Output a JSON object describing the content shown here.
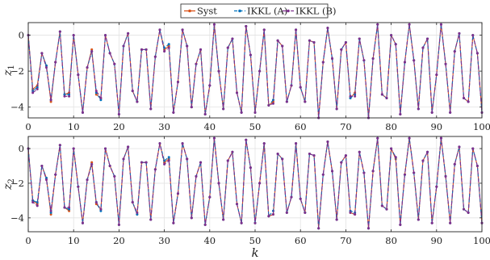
{
  "legend": {
    "entries": [
      {
        "label": "Syst",
        "color": "#D95319",
        "style": "solid",
        "marker": "dot"
      },
      {
        "label": "IKKL (A)",
        "color": "#0072BD",
        "style": "dashed",
        "marker": "dot"
      },
      {
        "label": "IKKL (B)",
        "color": "#7E2F8E",
        "style": "dash-dot",
        "marker": "dot"
      }
    ]
  },
  "chart_data": [
    {
      "type": "line",
      "ylabel": "z1",
      "xlabel": "",
      "xlim": [
        0,
        100
      ],
      "ylim": [
        -4.6,
        0.7
      ],
      "xticks": [
        0,
        10,
        20,
        30,
        40,
        50,
        60,
        70,
        80,
        90,
        100
      ],
      "yticks": [
        0,
        -2,
        -4
      ],
      "grid": true,
      "x": [
        0,
        1,
        2,
        3,
        4,
        5,
        6,
        7,
        8,
        9,
        10,
        11,
        12,
        13,
        14,
        15,
        16,
        17,
        18,
        19,
        20,
        21,
        22,
        23,
        24,
        25,
        26,
        27,
        28,
        29,
        30,
        31,
        32,
        33,
        34,
        35,
        36,
        37,
        38,
        39,
        40,
        41,
        42,
        43,
        44,
        45,
        46,
        47,
        48,
        49,
        50,
        51,
        52,
        53,
        54,
        55,
        56,
        57,
        58,
        59,
        60,
        61,
        62,
        63,
        64,
        65,
        66,
        67,
        68,
        69,
        70,
        71,
        72,
        73,
        74,
        75,
        76,
        77,
        78,
        79,
        80,
        81,
        82,
        83,
        84,
        85,
        86,
        87,
        88,
        89,
        90,
        91,
        92,
        93,
        94,
        95,
        96,
        97,
        98,
        99,
        100
      ],
      "series": [
        {
          "name": "Syst",
          "values": [
            0,
            -3,
            -2.8,
            -1,
            -1.7,
            -3.7,
            -1.5,
            0.2,
            -3.3,
            -3.2,
            0,
            -2.2,
            -4.3,
            -1.8,
            -0.8,
            -3.3,
            -3.5,
            0,
            -1,
            -1.6,
            -4.4,
            -0.6,
            0.1,
            -3.1,
            -3.7,
            -0.8,
            -0.8,
            -4.1,
            -1.2,
            0.3,
            -0.8,
            -0.6,
            -4.3,
            -2.6,
            0.3,
            -0.6,
            -4,
            -1.6,
            -0.8,
            -4.4,
            -2.8,
            0.6,
            -2,
            -4.1,
            -0.7,
            -0.2,
            -3.2,
            -4.3,
            0.5,
            -1.1,
            -4.3,
            -2,
            0.3,
            -3.9,
            -3.7,
            -0.3,
            -0.6,
            -3.7,
            -2.8,
            0.3,
            -2.9,
            -3.7,
            -0.3,
            -0.4,
            -4.6,
            -1.5,
            0.4,
            -1.3,
            -4.1,
            -0.8,
            -0.4,
            -3.5,
            -3.2,
            -0.2,
            -1.4,
            -4.6,
            -1.3,
            0.6,
            -3.3,
            -3.5,
            0,
            -0.5,
            -4.4,
            -1.5,
            0.6,
            -1.4,
            -4.1,
            -0.7,
            -0.2,
            -4.3,
            -2.2,
            0.6,
            -1.6,
            -4.3,
            -0.9,
            0.1,
            -3.5,
            -3.7,
            0,
            -1,
            -4.3
          ]
        },
        {
          "name": "IKKL (A)",
          "values": [
            0,
            -3.1,
            -2.9,
            -1,
            -1.7,
            -3.6,
            -1.5,
            0.2,
            -3.3,
            -3.3,
            0,
            -2.2,
            -4.3,
            -1.8,
            -0.9,
            -3.2,
            -3.6,
            0,
            -1,
            -1.6,
            -4.4,
            -0.6,
            0.1,
            -3.1,
            -3.7,
            -0.8,
            -0.8,
            -4.1,
            -1.2,
            0.3,
            -0.7,
            -0.5,
            -4.3,
            -2.6,
            0.3,
            -0.6,
            -4,
            -1.6,
            -0.8,
            -4.4,
            -2.8,
            0.6,
            -2,
            -4.1,
            -0.7,
            -0.2,
            -3.2,
            -4.3,
            0.5,
            -1.1,
            -4.3,
            -2,
            0.3,
            -3.9,
            -3.6,
            -0.3,
            -0.6,
            -3.7,
            -2.8,
            0.3,
            -2.9,
            -3.7,
            -0.3,
            -0.4,
            -4.6,
            -1.5,
            0.4,
            -1.3,
            -4.1,
            -0.8,
            -0.4,
            -3.5,
            -3.3,
            -0.2,
            -1.4,
            -4.6,
            -1.3,
            0.6,
            -3.3,
            -3.5,
            0,
            -0.5,
            -4.4,
            -1.5,
            0.6,
            -1.4,
            -4.1,
            -0.7,
            -0.2,
            -4.3,
            -2.2,
            0.6,
            -1.6,
            -4.3,
            -0.9,
            0.1,
            -3.5,
            -3.7,
            0,
            -1,
            -4.3
          ]
        },
        {
          "name": "IKKL (B)",
          "values": [
            0,
            -3.2,
            -3,
            -1,
            -1.8,
            -3.6,
            -1.5,
            0.2,
            -3.4,
            -3.4,
            0,
            -2.2,
            -4.3,
            -1.8,
            -0.9,
            -3.1,
            -3.5,
            0,
            -1,
            -1.6,
            -4.4,
            -0.6,
            0.1,
            -3.1,
            -3.7,
            -0.8,
            -0.8,
            -4.1,
            -1.2,
            0.3,
            -0.9,
            -0.7,
            -4.3,
            -2.6,
            0.3,
            -0.6,
            -4,
            -1.6,
            -0.8,
            -4.4,
            -2.8,
            0.6,
            -2,
            -4.1,
            -0.7,
            -0.2,
            -3.2,
            -4.3,
            0.5,
            -1.1,
            -4.3,
            -2,
            0.3,
            -3.9,
            -3.8,
            -0.3,
            -0.6,
            -3.7,
            -2.8,
            0.3,
            -2.9,
            -3.7,
            -0.3,
            -0.4,
            -4.6,
            -1.5,
            0.4,
            -1.3,
            -4.1,
            -0.8,
            -0.4,
            -3.4,
            -3.4,
            -0.2,
            -1.4,
            -4.6,
            -1.3,
            0.6,
            -3.3,
            -3.5,
            0,
            -0.5,
            -4.4,
            -1.5,
            0.6,
            -1.4,
            -4.1,
            -0.7,
            -0.2,
            -4.3,
            -2.2,
            0.6,
            -1.6,
            -4.3,
            -0.9,
            0.1,
            -3.5,
            -3.7,
            0,
            -1,
            -4.3
          ]
        }
      ]
    },
    {
      "type": "line",
      "ylabel": "z2",
      "xlabel": "k",
      "xlim": [
        0,
        100
      ],
      "ylim": [
        -4.8,
        0.7
      ],
      "xticks": [
        0,
        10,
        20,
        30,
        40,
        50,
        60,
        70,
        80,
        90,
        100
      ],
      "yticks": [
        0,
        -2,
        -4
      ],
      "grid": true,
      "x": [
        0,
        1,
        2,
        3,
        4,
        5,
        6,
        7,
        8,
        9,
        10,
        11,
        12,
        13,
        14,
        15,
        16,
        17,
        18,
        19,
        20,
        21,
        22,
        23,
        24,
        25,
        26,
        27,
        28,
        29,
        30,
        31,
        32,
        33,
        34,
        35,
        36,
        37,
        38,
        39,
        40,
        41,
        42,
        43,
        44,
        45,
        46,
        47,
        48,
        49,
        50,
        51,
        52,
        53,
        54,
        55,
        56,
        57,
        58,
        59,
        60,
        61,
        62,
        63,
        64,
        65,
        66,
        67,
        68,
        69,
        70,
        71,
        72,
        73,
        74,
        75,
        76,
        77,
        78,
        79,
        80,
        81,
        82,
        83,
        84,
        85,
        86,
        87,
        88,
        89,
        90,
        91,
        92,
        93,
        94,
        95,
        96,
        97,
        98,
        99,
        100
      ],
      "series": [
        {
          "name": "Syst",
          "values": [
            0,
            -3,
            -3.2,
            -1,
            -1.7,
            -3.8,
            -1.5,
            0.2,
            -3.4,
            -3.6,
            0,
            -2.2,
            -4.3,
            -1.8,
            -0.8,
            -3.2,
            -3.5,
            0,
            -1,
            -1.6,
            -4.4,
            -0.6,
            0.1,
            -3.1,
            -3.8,
            -0.8,
            -0.8,
            -4.1,
            -1.2,
            0.3,
            -0.8,
            -0.6,
            -4.3,
            -2.6,
            0.3,
            -0.6,
            -4,
            -1.6,
            -0.8,
            -4.4,
            -2.8,
            0.6,
            -2,
            -4.1,
            -0.7,
            -0.2,
            -3.2,
            -4.3,
            0.5,
            -1.1,
            -4.3,
            -2,
            0.3,
            -3.9,
            -3.8,
            -0.3,
            -0.6,
            -3.7,
            -2.8,
            0.3,
            -2.9,
            -3.7,
            -0.3,
            -0.4,
            -4.6,
            -1.5,
            0.4,
            -1.3,
            -4.1,
            -0.8,
            -0.4,
            -3.7,
            -3.8,
            -0.2,
            -1.4,
            -4.6,
            -1.3,
            0.6,
            -3.3,
            -3.5,
            0,
            -0.6,
            -4.4,
            -1.5,
            0.6,
            -1.4,
            -4.1,
            -0.7,
            -0.2,
            -4.3,
            -2.2,
            0.6,
            -1.6,
            -4.3,
            -0.9,
            0.1,
            -3.5,
            -3.7,
            0,
            -1,
            -4.3
          ]
        },
        {
          "name": "IKKL (A)",
          "values": [
            0,
            -3,
            -3.1,
            -1,
            -1.7,
            -3.7,
            -1.5,
            0.2,
            -3.4,
            -3.5,
            0,
            -2.2,
            -4.3,
            -1.8,
            -0.9,
            -3.1,
            -3.6,
            0,
            -1,
            -1.6,
            -4.4,
            -0.6,
            0.1,
            -3.1,
            -3.8,
            -0.8,
            -0.8,
            -4.1,
            -1.2,
            0.3,
            -0.7,
            -0.5,
            -4.3,
            -2.6,
            0.3,
            -0.6,
            -4,
            -1.6,
            -0.8,
            -4.4,
            -2.8,
            0.6,
            -2,
            -4.1,
            -0.7,
            -0.2,
            -3.2,
            -4.3,
            0.5,
            -1.1,
            -4.3,
            -2,
            0.3,
            -3.9,
            -3.6,
            -0.3,
            -0.6,
            -3.7,
            -2.8,
            0.3,
            -2.9,
            -3.7,
            -0.3,
            -0.4,
            -4.6,
            -1.5,
            0.4,
            -1.3,
            -4.1,
            -0.8,
            -0.4,
            -3.6,
            -3.7,
            -0.2,
            -1.4,
            -4.6,
            -1.3,
            0.6,
            -3.3,
            -3.5,
            0,
            -0.5,
            -4.4,
            -1.5,
            0.6,
            -1.4,
            -4.1,
            -0.7,
            -0.2,
            -4.3,
            -2.2,
            0.6,
            -1.6,
            -4.3,
            -0.9,
            0.1,
            -3.5,
            -3.7,
            0,
            -1,
            -4.3
          ]
        },
        {
          "name": "IKKL (B)",
          "values": [
            0,
            -3.1,
            -3.3,
            -1,
            -1.8,
            -3.6,
            -1.5,
            0.2,
            -3.4,
            -3.4,
            0,
            -2.2,
            -4.3,
            -1.8,
            -0.9,
            -3.1,
            -3.5,
            0,
            -1,
            -1.6,
            -4.4,
            -0.6,
            0.1,
            -3.1,
            -3.7,
            -0.8,
            -0.8,
            -4.1,
            -1.2,
            0.3,
            -0.9,
            -0.7,
            -4.3,
            -2.6,
            0.3,
            -0.6,
            -4,
            -1.6,
            -0.8,
            -4.4,
            -2.8,
            0.6,
            -2,
            -4.1,
            -0.7,
            -0.2,
            -3.2,
            -4.3,
            0.5,
            -1.1,
            -4.3,
            -2,
            0.3,
            -3.9,
            -3.8,
            -0.3,
            -0.6,
            -3.7,
            -2.8,
            0.3,
            -2.9,
            -3.7,
            -0.3,
            -0.4,
            -4.6,
            -1.5,
            0.4,
            -1.3,
            -4.1,
            -0.8,
            -0.4,
            -3.7,
            -3.8,
            -0.2,
            -1.4,
            -4.6,
            -1.3,
            0.6,
            -3.3,
            -3.5,
            0,
            -0.5,
            -4.4,
            -1.5,
            0.6,
            -1.4,
            -4.1,
            -0.7,
            -0.2,
            -4.3,
            -2.2,
            0.6,
            -1.6,
            -4.3,
            -0.9,
            0.1,
            -3.5,
            -3.7,
            0,
            -1,
            -4.3
          ]
        }
      ]
    }
  ]
}
